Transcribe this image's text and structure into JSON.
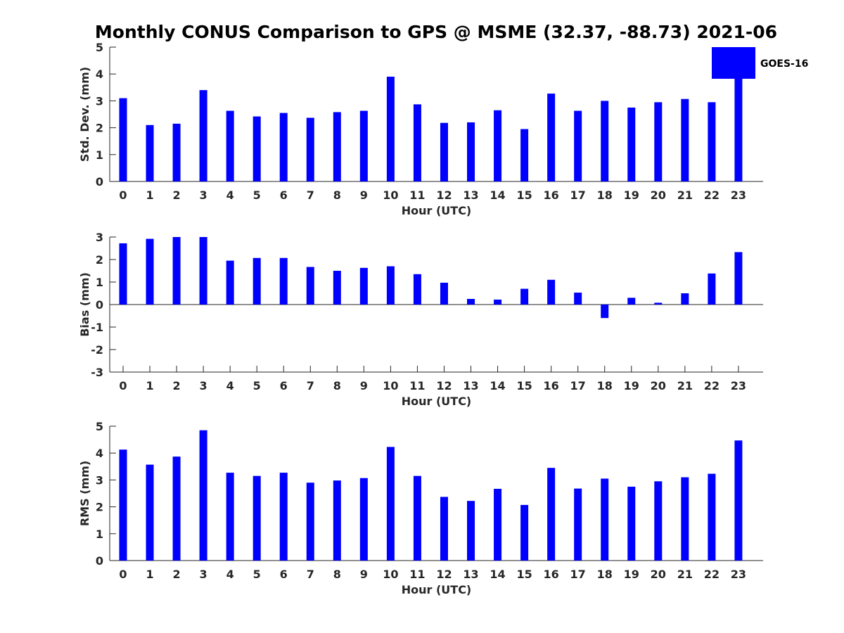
{
  "chart_data": {
    "type": "bar",
    "title": "Monthly CONUS Comparison to GPS @ MSME (32.37, -88.73) 2021-06",
    "legend": {
      "entries": [
        "GOES-16"
      ],
      "placement": "top-right"
    },
    "color": "#0000ff",
    "categories": [
      "0",
      "1",
      "2",
      "3",
      "4",
      "5",
      "6",
      "7",
      "8",
      "9",
      "10",
      "11",
      "12",
      "13",
      "14",
      "15",
      "16",
      "17",
      "18",
      "19",
      "20",
      "21",
      "22",
      "23"
    ],
    "panels": [
      {
        "name": "stddev",
        "ylabel": "Std. Dev. (mm)",
        "xlabel": "Hour (UTC)",
        "ylim": [
          0,
          5
        ],
        "yticks": [
          "0",
          "1",
          "2",
          "3",
          "4",
          "5"
        ],
        "values": [
          3.1,
          2.1,
          2.15,
          3.4,
          2.63,
          2.42,
          2.55,
          2.37,
          2.58,
          2.63,
          3.9,
          2.87,
          2.18,
          2.2,
          2.65,
          1.95,
          3.27,
          2.63,
          3.0,
          2.75,
          2.95,
          3.07,
          2.95,
          4.0
        ]
      },
      {
        "name": "bias",
        "ylabel": "Bias (mm)",
        "xlabel": "Hour (UTC)",
        "ylim": [
          -3,
          3
        ],
        "yticks": [
          "-3",
          "-2",
          "-1",
          "0",
          "1",
          "2",
          "3"
        ],
        "values": [
          2.72,
          2.92,
          3.0,
          3.0,
          1.95,
          2.07,
          2.07,
          1.67,
          1.5,
          1.63,
          1.7,
          1.35,
          0.97,
          0.25,
          0.22,
          0.7,
          1.1,
          0.53,
          -0.6,
          0.3,
          0.08,
          0.5,
          1.38,
          2.33
        ]
      },
      {
        "name": "rms",
        "ylabel": "RMS (mm)",
        "xlabel": "Hour (UTC)",
        "ylim": [
          0,
          5
        ],
        "yticks": [
          "0",
          "1",
          "2",
          "3",
          "4",
          "5"
        ],
        "values": [
          4.13,
          3.57,
          3.87,
          4.85,
          3.27,
          3.15,
          3.27,
          2.9,
          2.98,
          3.07,
          4.23,
          3.15,
          2.37,
          2.22,
          2.67,
          2.07,
          3.45,
          2.68,
          3.05,
          2.75,
          2.95,
          3.1,
          3.23,
          4.47
        ]
      }
    ]
  }
}
